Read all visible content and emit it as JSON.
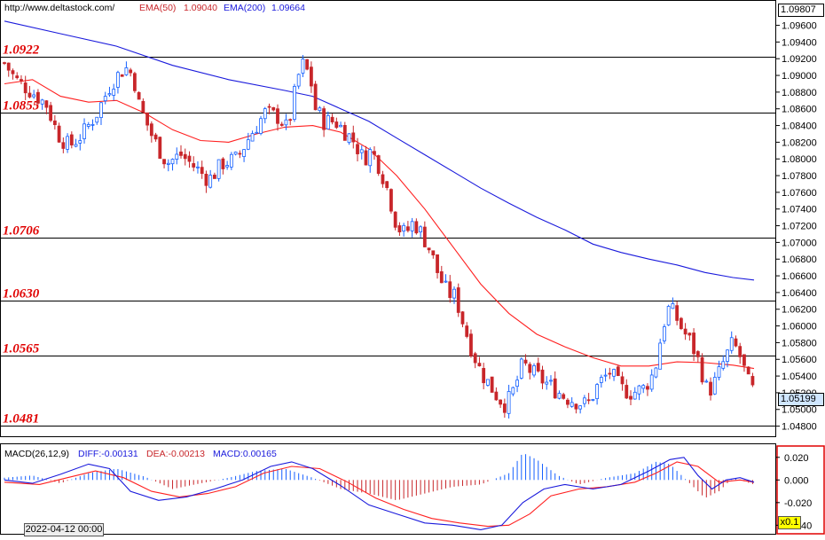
{
  "header": {
    "url": "http://www.deltastock.com/",
    "ema50_label": "EMA(50)",
    "ema50_value": "1.09040",
    "ema200_label": "EMA(200)",
    "ema200_value": "1.09664"
  },
  "macd_header": {
    "label": "MACD(26,12,9)",
    "diff": "DIFF:-0.00131",
    "dea": "DEA:-0.00213",
    "macd": "MACD:0.00165"
  },
  "date_label": "2022-04-12 00:00",
  "scale_label": "x0.1",
  "price_labels": {
    "top": "1.09807",
    "last": "1.05199"
  },
  "colors": {
    "up": "#1560ff",
    "down": "#c8262a",
    "ema50": "#ff2020",
    "ema200": "#1a1adc",
    "diff": "#1a1adc",
    "dea": "#ff2020",
    "level": "#e00000"
  },
  "chart_data": [
    {
      "type": "candlestick",
      "ylim": [
        1.047,
        1.0985
      ],
      "y_ticks": [
        "1.09600",
        "1.09400",
        "1.09200",
        "1.09000",
        "1.08800",
        "1.08600",
        "1.08400",
        "1.08200",
        "1.08000",
        "1.07800",
        "1.07600",
        "1.07400",
        "1.07200",
        "1.07000",
        "1.06800",
        "1.06600",
        "1.06400",
        "1.06200",
        "1.06000",
        "1.05800",
        "1.05600",
        "1.05400",
        "1.05200",
        "1.05000",
        "1.04800"
      ],
      "levels": [
        {
          "value": 1.0922,
          "label": "1.0922"
        },
        {
          "value": 1.0855,
          "label": "1.0855"
        },
        {
          "value": 1.0706,
          "label": "1.0706"
        },
        {
          "value": 1.063,
          "label": "1.0630"
        },
        {
          "value": 1.0565,
          "label": "1.0565"
        },
        {
          "value": 1.0481,
          "label": "1.0481"
        }
      ],
      "close_path": [
        [
          0,
          1.0915
        ],
        [
          8,
          1.0895
        ],
        [
          20,
          1.088
        ],
        [
          30,
          1.0865
        ],
        [
          38,
          1.083
        ],
        [
          46,
          1.0815
        ],
        [
          56,
          1.083
        ],
        [
          66,
          1.0855
        ],
        [
          76,
          1.089
        ],
        [
          86,
          1.091
        ],
        [
          92,
          1.09
        ],
        [
          96,
          1.0865
        ],
        [
          106,
          1.0825
        ],
        [
          116,
          1.0795
        ],
        [
          126,
          1.0805
        ],
        [
          136,
          1.079
        ],
        [
          146,
          1.0775
        ],
        [
          156,
          1.0795
        ],
        [
          166,
          1.08
        ],
        [
          176,
          1.083
        ],
        [
          186,
          1.0855
        ],
        [
          196,
          1.085
        ],
        [
          202,
          1.0835
        ],
        [
          208,
          1.0885
        ],
        [
          212,
          1.0915
        ],
        [
          218,
          1.09
        ],
        [
          222,
          1.086
        ],
        [
          228,
          1.0845
        ],
        [
          236,
          1.0845
        ],
        [
          242,
          1.0835
        ],
        [
          250,
          1.082
        ],
        [
          256,
          1.08
        ],
        [
          262,
          1.081
        ],
        [
          268,
          1.079
        ],
        [
          274,
          1.076
        ],
        [
          280,
          1.072
        ],
        [
          286,
          1.071
        ],
        [
          292,
          1.0725
        ],
        [
          298,
          1.071
        ],
        [
          304,
          1.069
        ],
        [
          310,
          1.066
        ],
        [
          316,
          1.064
        ],
        [
          322,
          1.0635
        ],
        [
          328,
          1.06
        ],
        [
          334,
          1.057
        ],
        [
          340,
          1.0545
        ],
        [
          346,
          1.053
        ],
        [
          352,
          1.0515
        ],
        [
          358,
          1.0505
        ],
        [
          364,
          1.0525
        ],
        [
          370,
          1.0555
        ],
        [
          376,
          1.0545
        ],
        [
          384,
          1.0535
        ],
        [
          392,
          1.0525
        ],
        [
          400,
          1.0515
        ],
        [
          408,
          1.051
        ],
        [
          416,
          1.0505
        ],
        [
          424,
          1.053
        ],
        [
          432,
          1.0545
        ],
        [
          440,
          1.0525
        ],
        [
          448,
          1.052
        ],
        [
          456,
          1.0525
        ],
        [
          464,
          1.0545
        ],
        [
          470,
          1.06
        ],
        [
          474,
          1.062
        ],
        [
          478,
          1.0615
        ],
        [
          484,
          1.0595
        ],
        [
          490,
          1.058
        ],
        [
          496,
          1.0555
        ],
        [
          502,
          1.052
        ],
        [
          508,
          1.0535
        ],
        [
          514,
          1.056
        ],
        [
          520,
          1.058
        ],
        [
          526,
          1.056
        ],
        [
          530,
          1.0535
        ],
        [
          535,
          1.052
        ]
      ],
      "ema50": [
        [
          0,
          1.089
        ],
        [
          20,
          1.0895
        ],
        [
          40,
          1.0875
        ],
        [
          60,
          1.0868
        ],
        [
          80,
          1.087
        ],
        [
          100,
          1.0855
        ],
        [
          120,
          1.0835
        ],
        [
          140,
          1.0822
        ],
        [
          160,
          1.082
        ],
        [
          180,
          1.083
        ],
        [
          200,
          1.0838
        ],
        [
          220,
          1.084
        ],
        [
          240,
          1.0832
        ],
        [
          260,
          1.0812
        ],
        [
          280,
          1.078
        ],
        [
          300,
          1.074
        ],
        [
          320,
          1.0695
        ],
        [
          340,
          1.065
        ],
        [
          360,
          1.0615
        ],
        [
          380,
          1.059
        ],
        [
          400,
          1.0575
        ],
        [
          420,
          1.0562
        ],
        [
          440,
          1.0552
        ],
        [
          460,
          1.0552
        ],
        [
          480,
          1.0557
        ],
        [
          500,
          1.0556
        ],
        [
          520,
          1.0553
        ],
        [
          535,
          1.0549
        ]
      ],
      "ema200": [
        [
          0,
          1.0965
        ],
        [
          40,
          1.095
        ],
        [
          80,
          1.0935
        ],
        [
          120,
          1.0912
        ],
        [
          160,
          1.0895
        ],
        [
          200,
          1.0882
        ],
        [
          220,
          1.0875
        ],
        [
          240,
          1.086
        ],
        [
          260,
          1.0845
        ],
        [
          280,
          1.0825
        ],
        [
          300,
          1.0805
        ],
        [
          320,
          1.0785
        ],
        [
          340,
          1.0765
        ],
        [
          360,
          1.0747
        ],
        [
          380,
          1.073
        ],
        [
          400,
          1.0715
        ],
        [
          420,
          1.0698
        ],
        [
          440,
          1.0688
        ],
        [
          460,
          1.068
        ],
        [
          480,
          1.0673
        ],
        [
          500,
          1.0664
        ],
        [
          520,
          1.0658
        ],
        [
          535,
          1.0655
        ]
      ]
    },
    {
      "type": "macd",
      "ylim": [
        -0.046,
        0.03
      ],
      "y_ticks": [
        "0.020",
        "0.000",
        "-0.020",
        "-0.040"
      ],
      "hist_path": [
        [
          0,
          0.002
        ],
        [
          20,
          0.004
        ],
        [
          40,
          -0.003
        ],
        [
          60,
          0.006
        ],
        [
          80,
          0.01
        ],
        [
          100,
          0.003
        ],
        [
          120,
          -0.008
        ],
        [
          140,
          -0.003
        ],
        [
          160,
          0.002
        ],
        [
          180,
          0.008
        ],
        [
          200,
          0.01
        ],
        [
          220,
          0.002
        ],
        [
          240,
          -0.008
        ],
        [
          260,
          -0.012
        ],
        [
          280,
          -0.018
        ],
        [
          300,
          -0.012
        ],
        [
          320,
          -0.006
        ],
        [
          340,
          -0.004
        ],
        [
          360,
          0.006
        ],
        [
          370,
          0.024
        ],
        [
          380,
          0.018
        ],
        [
          395,
          0.004
        ],
        [
          410,
          -0.004
        ],
        [
          430,
          0.002
        ],
        [
          450,
          0.006
        ],
        [
          465,
          0.016
        ],
        [
          475,
          0.014
        ],
        [
          490,
          -0.004
        ],
        [
          500,
          -0.016
        ],
        [
          510,
          -0.01
        ],
        [
          520,
          0.002
        ],
        [
          535,
          -0.004
        ]
      ],
      "diff_path": [
        [
          0,
          0.0
        ],
        [
          20,
          -0.003
        ],
        [
          40,
          0.005
        ],
        [
          60,
          0.014
        ],
        [
          75,
          0.01
        ],
        [
          90,
          -0.01
        ],
        [
          110,
          -0.018
        ],
        [
          130,
          -0.015
        ],
        [
          150,
          -0.008
        ],
        [
          170,
          0.0
        ],
        [
          190,
          0.012
        ],
        [
          205,
          0.016
        ],
        [
          220,
          0.01
        ],
        [
          240,
          -0.005
        ],
        [
          260,
          -0.022
        ],
        [
          280,
          -0.03
        ],
        [
          300,
          -0.038
        ],
        [
          320,
          -0.04
        ],
        [
          340,
          -0.044
        ],
        [
          355,
          -0.04
        ],
        [
          370,
          -0.02
        ],
        [
          385,
          -0.008
        ],
        [
          400,
          -0.004
        ],
        [
          420,
          -0.008
        ],
        [
          440,
          -0.004
        ],
        [
          460,
          0.008
        ],
        [
          475,
          0.018
        ],
        [
          485,
          0.02
        ],
        [
          495,
          0.004
        ],
        [
          505,
          -0.008
        ],
        [
          515,
          0.0
        ],
        [
          525,
          0.002
        ],
        [
          535,
          -0.002
        ]
      ],
      "dea_path": [
        [
          0,
          -0.002
        ],
        [
          25,
          -0.004
        ],
        [
          45,
          0.002
        ],
        [
          65,
          0.008
        ],
        [
          85,
          0.002
        ],
        [
          105,
          -0.01
        ],
        [
          125,
          -0.015
        ],
        [
          145,
          -0.012
        ],
        [
          165,
          -0.006
        ],
        [
          185,
          0.006
        ],
        [
          205,
          0.012
        ],
        [
          225,
          0.01
        ],
        [
          245,
          -0.002
        ],
        [
          265,
          -0.016
        ],
        [
          285,
          -0.026
        ],
        [
          305,
          -0.034
        ],
        [
          325,
          -0.038
        ],
        [
          345,
          -0.041
        ],
        [
          360,
          -0.04
        ],
        [
          375,
          -0.03
        ],
        [
          390,
          -0.014
        ],
        [
          410,
          -0.008
        ],
        [
          430,
          -0.006
        ],
        [
          450,
          -0.002
        ],
        [
          465,
          0.006
        ],
        [
          480,
          0.016
        ],
        [
          495,
          0.012
        ],
        [
          510,
          -0.002
        ],
        [
          525,
          0.0
        ],
        [
          535,
          -0.002
        ]
      ]
    }
  ]
}
